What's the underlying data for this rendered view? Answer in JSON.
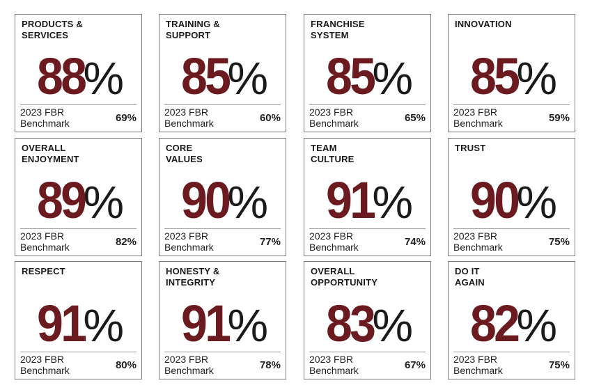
{
  "cards": [
    {
      "title": "PRODUCTS &\nSERVICES",
      "value": "88",
      "benchmark_label": "2023 FBR Benchmark",
      "benchmark_value": "69%"
    },
    {
      "title": "TRAINING &\nSUPPORT",
      "value": "85",
      "benchmark_label": "2023 FBR Benchmark",
      "benchmark_value": "60%"
    },
    {
      "title": "FRANCHISE\nSYSTEM",
      "value": "85",
      "benchmark_label": "2023 FBR Benchmark",
      "benchmark_value": "65%"
    },
    {
      "title": "INNOVATION",
      "value": "85",
      "benchmark_label": "2023 FBR Benchmark",
      "benchmark_value": "59%"
    },
    {
      "title": "OVERALL\nENJOYMENT",
      "value": "89",
      "benchmark_label": "2023 FBR Benchmark",
      "benchmark_value": "82%"
    },
    {
      "title": "CORE\nVALUES",
      "value": "90",
      "benchmark_label": "2023 FBR Benchmark",
      "benchmark_value": "77%"
    },
    {
      "title": "TEAM\nCULTURE",
      "value": "91",
      "benchmark_label": "2023 FBR Benchmark",
      "benchmark_value": "74%"
    },
    {
      "title": "TRUST",
      "value": "90",
      "benchmark_label": "2023 FBR Benchmark",
      "benchmark_value": "75%"
    },
    {
      "title": "RESPECT",
      "value": "91",
      "benchmark_label": "2023 FBR Benchmark",
      "benchmark_value": "80%"
    },
    {
      "title": "HONESTY &\nINTEGRITY",
      "value": "91",
      "benchmark_label": "2023 FBR Benchmark",
      "benchmark_value": "78%"
    },
    {
      "title": "OVERALL\nOPPORTUNITY",
      "value": "83",
      "benchmark_label": "2023 FBR Benchmark",
      "benchmark_value": "67%"
    },
    {
      "title": "DO IT\nAGAIN",
      "value": "82",
      "benchmark_label": "2023 FBR Benchmark",
      "benchmark_value": "75%"
    }
  ],
  "percent_sign": "%",
  "colors": {
    "accent": "#6b1a1f",
    "text": "#1a1a1a",
    "border": "#7a7a7a"
  }
}
